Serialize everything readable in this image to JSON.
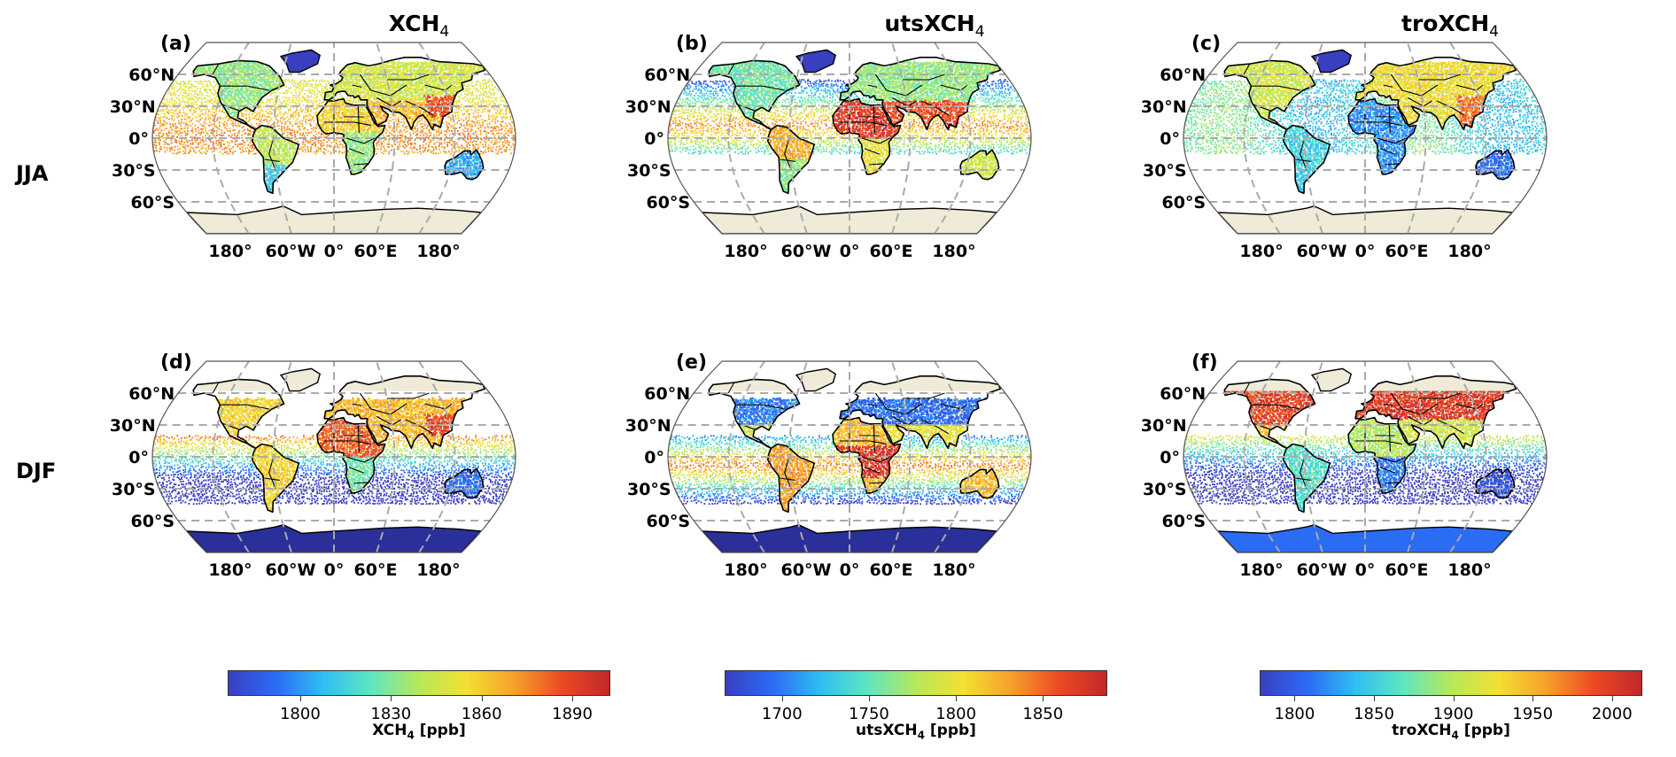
{
  "columns": [
    {
      "title_main": "XCH",
      "title_sub": "4"
    },
    {
      "title_main": "utsXCH",
      "title_sub": "4"
    },
    {
      "title_main": "troXCH",
      "title_sub": "4"
    }
  ],
  "rows": [
    "JJA",
    "DJF"
  ],
  "panels": [
    {
      "label": "(a)",
      "row": 0,
      "col": 0,
      "pattern": "jja_total"
    },
    {
      "label": "(b)",
      "row": 0,
      "col": 1,
      "pattern": "jja_uts"
    },
    {
      "label": "(c)",
      "row": 0,
      "col": 2,
      "pattern": "jja_tro"
    },
    {
      "label": "(d)",
      "row": 1,
      "col": 0,
      "pattern": "djf_total"
    },
    {
      "label": "(e)",
      "row": 1,
      "col": 1,
      "pattern": "djf_uts"
    },
    {
      "label": "(f)",
      "row": 1,
      "col": 2,
      "pattern": "djf_tro"
    }
  ],
  "lat_labels": [
    "60°N",
    "30°N",
    "0°",
    "30°S",
    "60°S"
  ],
  "lon_labels": [
    "180°",
    "60°W",
    "0°",
    "60°E",
    "180°"
  ],
  "colorbars": [
    {
      "label_main": "XCH",
      "label_sub": "4",
      "label_unit": " [ppb]",
      "vmin": 1776,
      "vmax": 1902,
      "ticks": [
        "1800",
        "1830",
        "1860",
        "1890"
      ]
    },
    {
      "label_main": "utsXCH",
      "label_sub": "4",
      "label_unit": " [ppb]",
      "vmin": 1667,
      "vmax": 1886,
      "ticks": [
        "1700",
        "1750",
        "1800",
        "1850"
      ]
    },
    {
      "label_main": "troXCH",
      "label_sub": "4",
      "label_unit": " [ppb]",
      "vmin": 1778,
      "vmax": 2018,
      "ticks": [
        "1800",
        "1850",
        "1900",
        "1950",
        "2000"
      ]
    }
  ],
  "colors": {
    "jet": [
      "#3a3fc0",
      "#2b6cf5",
      "#2fbff2",
      "#5fe6c0",
      "#b6e85a",
      "#f4e032",
      "#f6a02a",
      "#ec4a22",
      "#c0282a"
    ],
    "land": "#efebd8",
    "grid": "#aaaaaa",
    "border": "#000000"
  }
}
